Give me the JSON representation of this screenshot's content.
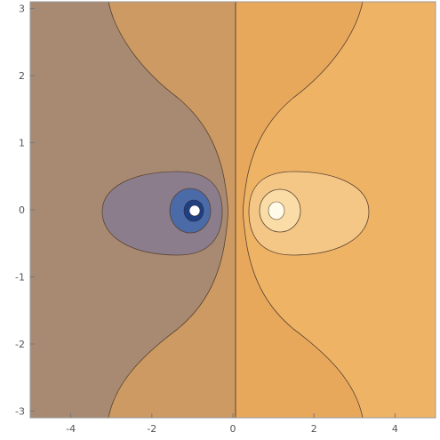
{
  "chart_data": {
    "type": "contour",
    "title": "",
    "xlabel": "",
    "ylabel": "",
    "xlim": [
      -5,
      5
    ],
    "ylim": [
      -3.1,
      3.1
    ],
    "x_ticks": [
      -4,
      -2,
      0,
      2,
      4
    ],
    "y_ticks": [
      -3,
      -2,
      -1,
      0,
      1,
      2,
      3
    ],
    "x_tick_labels": [
      "-4",
      "-2",
      "0",
      "2",
      "4"
    ],
    "y_tick_labels": [
      "-3",
      "-2",
      "-1",
      "0",
      "1",
      "2",
      "3"
    ],
    "grid": false,
    "legend": "none",
    "field": "phase-like: log-ratio of distances to point sources at (1,0) and (-1,0) plus x",
    "sources": [
      {
        "sign": "positive",
        "x": 1,
        "y": 0
      },
      {
        "sign": "negative",
        "x": -1,
        "y": 0
      }
    ],
    "contour_regions": [
      {
        "level": "outer-left",
        "color": "#a88a72"
      },
      {
        "level": "band-left",
        "color": "#cc9a62"
      },
      {
        "level": "band-right",
        "color": "#e8a85c"
      },
      {
        "level": "outer-right",
        "color": "#efb366"
      },
      {
        "level": "lobe-left",
        "color": "#8b7d8c"
      },
      {
        "level": "ring-left",
        "color": "#4a6aa8"
      },
      {
        "level": "core-left-1",
        "color": "#1f3f80"
      },
      {
        "level": "core-left-2",
        "color": "#ffffff"
      },
      {
        "level": "lobe-right",
        "color": "#f4c787"
      },
      {
        "level": "ring-right",
        "color": "#f9dca6"
      },
      {
        "level": "core-right",
        "color": "#fffbe8"
      }
    ],
    "line_color": "#5a4430"
  }
}
